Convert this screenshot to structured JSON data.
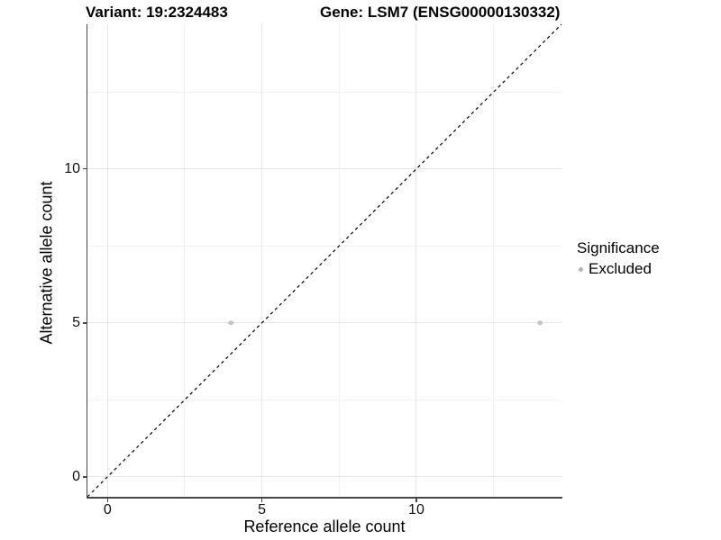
{
  "titles": {
    "variant": "Variant: 19:2324483",
    "gene": "Gene: LSM7 (ENSG00000130332)"
  },
  "axes": {
    "x": {
      "label": "Reference allele count",
      "tick_labels": [
        "0",
        "5",
        "10"
      ]
    },
    "y": {
      "label": "Alternative allele count",
      "tick_labels": [
        "0",
        "5",
        "10"
      ]
    }
  },
  "legend": {
    "title": "Significance",
    "items": [
      {
        "label": "Excluded",
        "color": "#b3b3b3"
      }
    ]
  },
  "style": {
    "background": "#ffffff",
    "point_color": "#c5c5c5",
    "major_grid_color": "#e6e6e6",
    "minor_grid_color": "#f2f2f2",
    "axis_line_color": "#474747",
    "dashed_line_color": "#000000",
    "text_color": "#000000"
  },
  "chart_data": {
    "type": "scatter",
    "title": "Variant: 19:2324483 — Gene: LSM7 (ENSG00000130332)",
    "xlabel": "Reference allele count",
    "ylabel": "Alternative allele count",
    "xlim": [
      -0.65,
      14.7
    ],
    "ylim": [
      -0.65,
      14.7
    ],
    "x_major_ticks": [
      0,
      5,
      10
    ],
    "y_major_ticks": [
      0,
      5,
      10
    ],
    "x_minor_gridlines": [
      2.5,
      7.5,
      12.5
    ],
    "y_minor_gridlines": [
      2.5,
      7.5,
      12.5
    ],
    "grid": "major and minor, light grey on white",
    "legend_position": "right-middle",
    "series": [
      {
        "name": "Excluded",
        "points": [
          {
            "x": 4,
            "y": 5
          },
          {
            "x": 14,
            "y": 5
          }
        ]
      }
    ],
    "reference_line": {
      "kind": "identity y=x",
      "style": "dashed",
      "from": [
        -0.65,
        -0.65
      ],
      "to": [
        14.7,
        14.7
      ]
    }
  }
}
